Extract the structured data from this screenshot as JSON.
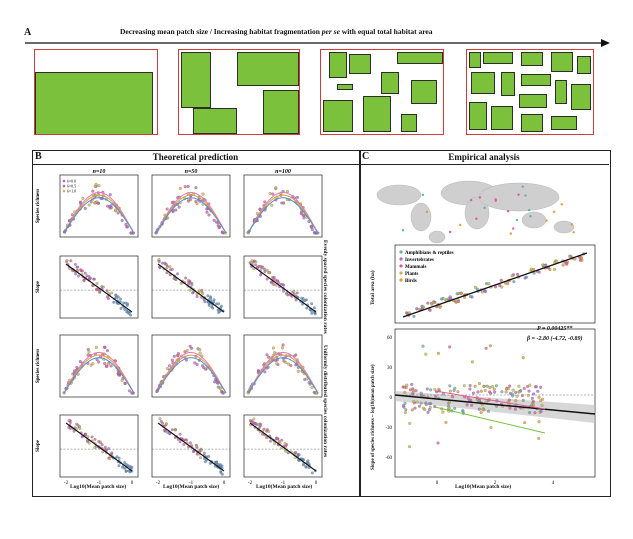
{
  "panelA": {
    "label": "A",
    "title_part1": "Decreasing mean patch size / Increasing habitat fragmentation ",
    "title_italic": "per se",
    "title_part2": " with equal total habitat area"
  },
  "panelB": {
    "label": "B",
    "title": "Theoretical prediction",
    "col_titles": [
      "n=10",
      "n=50",
      "n=100"
    ],
    "y_labels": [
      "Species richness",
      "Slope",
      "Species richness",
      "Slope"
    ],
    "x_label": "Log10(Mean patch size)",
    "side_label_top": "Evenly spaced species colonization rates",
    "side_label_bottom": "Uniformly distributed species colonization rates",
    "legend": [
      "δ=0.0",
      "δ=0.5",
      "δ=1.0"
    ],
    "x_ticks": [
      "-2",
      "-1",
      "0"
    ]
  },
  "panelC": {
    "label": "C",
    "title": "Empirical analysis",
    "legend": [
      "Amphibians & reptiles",
      "Invertebrates",
      "Mammals",
      "Plants",
      "Birds"
    ],
    "top_ylabel": "Total area (ha)",
    "bottom_ylabel": "Slope of species richness ~ log10(mean patch size)",
    "x_label": "Log10(Mean patch size)",
    "stat_p": "P = 0.00425**",
    "stat_beta": "β = -2.80 (-4.72, -0.89)",
    "x_ticks": [
      "0",
      "2",
      "4"
    ],
    "bottom_y_ticks": [
      "60",
      "30",
      "0",
      "-30",
      "-60"
    ]
  },
  "colors": {
    "habitat_green": "#7cc13c",
    "frame_red": "#d23b3b",
    "series": [
      "#5fb3a6",
      "#a86bd0",
      "#e05a9a",
      "#c8b84a",
      "#e0a030"
    ]
  }
}
